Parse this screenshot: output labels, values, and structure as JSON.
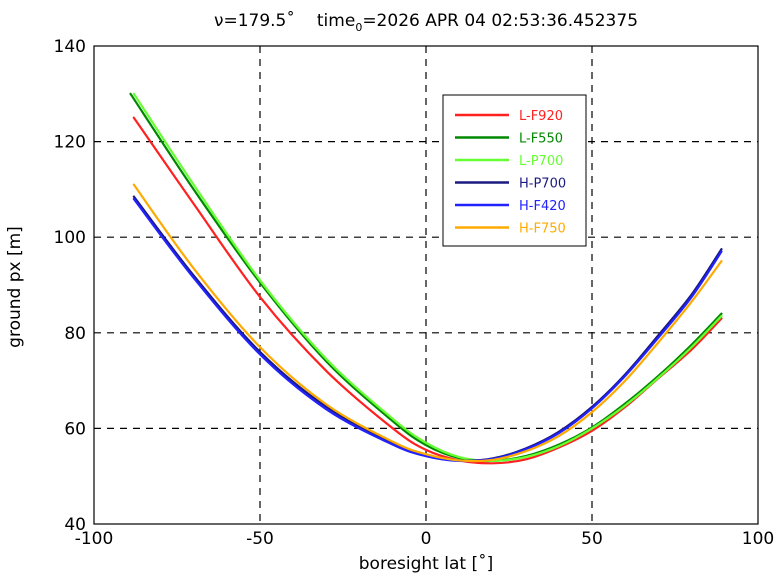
{
  "chart_data": {
    "type": "line",
    "title_prefix": "ν=179.5˚",
    "title_time_label": "time",
    "title_time_sub": "0",
    "title_time_value": "=2026 APR 04 02:53:36.452375",
    "xlabel": "boresight lat [˚]",
    "ylabel": "ground px [m]",
    "xlim": [
      -100,
      100
    ],
    "ylim": [
      40,
      140
    ],
    "xticks": [
      -100,
      -50,
      0,
      50,
      100
    ],
    "yticks": [
      40,
      60,
      80,
      100,
      120,
      140
    ],
    "grid": true,
    "legend_position": "upper-center",
    "series": [
      {
        "name": "L-F920",
        "color": "#ff2020",
        "x": [
          -88,
          -70,
          -50,
          -30,
          -10,
          0,
          10,
          20,
          30,
          40,
          50,
          60,
          70,
          80,
          89
        ],
        "y": [
          125,
          107,
          87.5,
          72,
          60,
          55.5,
          53.3,
          52.7,
          53.5,
          56,
          59.5,
          64.5,
          70.5,
          76.5,
          83
        ]
      },
      {
        "name": "L-F550",
        "color": "#008800",
        "x": [
          -89,
          -70,
          -50,
          -30,
          -10,
          0,
          10,
          20,
          30,
          40,
          50,
          60,
          70,
          80,
          89
        ],
        "y": [
          130,
          110,
          90.5,
          74,
          61.5,
          56.5,
          53.8,
          53.2,
          54.2,
          56.6,
          60.2,
          65.2,
          71,
          77.5,
          84
        ]
      },
      {
        "name": "L-P700",
        "color": "#66ff33",
        "x": [
          -88,
          -70,
          -50,
          -30,
          -10,
          0,
          10,
          20,
          30,
          40,
          50,
          60,
          70,
          80,
          89
        ],
        "y": [
          130,
          111,
          91,
          74.5,
          62,
          57,
          54,
          53.2,
          54,
          56.3,
          60,
          64.8,
          70.6,
          77,
          83.5
        ]
      },
      {
        "name": "H-P700",
        "color": "#1a1a80",
        "x": [
          -88,
          -70,
          -50,
          -30,
          -10,
          0,
          10,
          20,
          30,
          40,
          50,
          60,
          70,
          80,
          89
        ],
        "y": [
          108.5,
          92,
          76,
          64.5,
          57,
          54.5,
          53.3,
          53.7,
          55.8,
          59.3,
          64.5,
          71.3,
          79.5,
          88,
          97.5
        ]
      },
      {
        "name": "H-F420",
        "color": "#2222ff",
        "x": [
          -88,
          -70,
          -50,
          -30,
          -10,
          0,
          10,
          20,
          30,
          40,
          50,
          60,
          70,
          80,
          89
        ],
        "y": [
          108,
          91.5,
          75.5,
          64,
          56.6,
          54.2,
          53.2,
          53.6,
          55.6,
          59,
          64.2,
          71,
          79,
          87.5,
          97
        ]
      },
      {
        "name": "H-F750",
        "color": "#ffaa00",
        "x": [
          -88,
          -70,
          -50,
          -30,
          -10,
          0,
          10,
          20,
          30,
          40,
          50,
          60,
          70,
          80,
          89
        ],
        "y": [
          111,
          93.5,
          77,
          65,
          57.2,
          54.6,
          53.3,
          53.4,
          55.2,
          58.4,
          63.4,
          70,
          78,
          86.5,
          95
        ]
      }
    ]
  }
}
